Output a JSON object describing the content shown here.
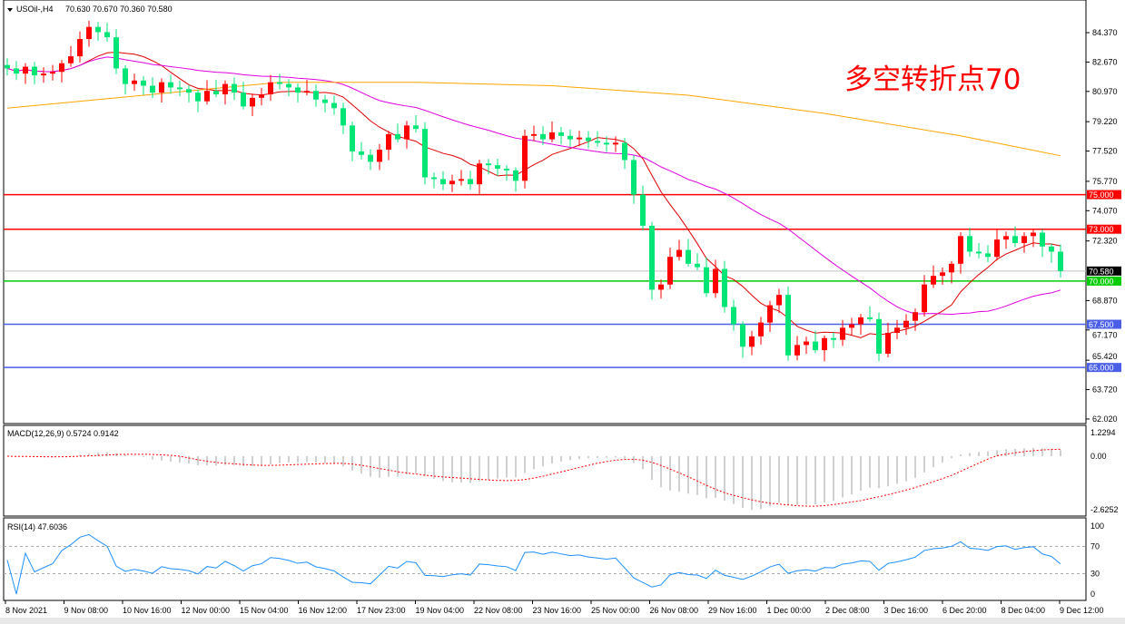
{
  "header": {
    "symbol": "USOil-,H4",
    "ohlc": "70.630 70.670 70.360 70.580"
  },
  "annotation": "多空转折点70",
  "colors": {
    "bull": "#ff0000",
    "bear": "#00e676",
    "ma_fast": "#e00000",
    "ma_mid": "#e000e0",
    "ma_slow": "#ffa500",
    "macd_hist": "#c0c0c0",
    "macd_signal": "#ff0000",
    "rsi": "#1e90ff"
  },
  "chart_data": [
    {
      "type": "candlestick",
      "title": "USOil-,H4",
      "ylim": [
        62.02,
        85.3
      ],
      "price_ticks": [
        "84.370",
        "82.670",
        "80.970",
        "79.220",
        "77.520",
        "75.770",
        "74.070",
        "72.320",
        "68.870",
        "67.170",
        "65.420",
        "63.720",
        "62.020"
      ],
      "closes": [
        82.3,
        82.0,
        82.4,
        81.9,
        82.0,
        82.1,
        82.6,
        83.0,
        84.0,
        84.7,
        84.4,
        84.1,
        82.3,
        81.4,
        81.6,
        81.3,
        80.9,
        81.5,
        81.2,
        81.1,
        80.9,
        80.4,
        81.0,
        80.8,
        81.4,
        80.9,
        80.1,
        80.6,
        80.8,
        81.5,
        81.4,
        81.2,
        80.9,
        81.0,
        80.5,
        80.3,
        80.0,
        79.0,
        77.5,
        77.3,
        76.9,
        77.6,
        78.5,
        78.2,
        79.0,
        78.8,
        76.0,
        75.9,
        75.6,
        75.8,
        75.9,
        75.6,
        76.8,
        76.7,
        76.5,
        76.4,
        75.8,
        78.4,
        78.5,
        78.2,
        78.6,
        78.4,
        78.2,
        78.3,
        78.1,
        78.0,
        77.9,
        78.0,
        77.0,
        75.0,
        73.2,
        69.5,
        69.8,
        71.4,
        71.8,
        71.0,
        70.8,
        69.3,
        70.7,
        68.5,
        67.5,
        66.2,
        66.8,
        67.6,
        68.6,
        69.2,
        65.7,
        66.3,
        66.5,
        66.0,
        66.7,
        66.6,
        67.3,
        67.5,
        67.9,
        67.8,
        65.8,
        67.0,
        67.3,
        67.7,
        68.2,
        69.8,
        70.3,
        70.5,
        71.0,
        72.6,
        71.7,
        71.6,
        71.4,
        72.4,
        72.6,
        72.2,
        72.6,
        72.8,
        72.0,
        71.7,
        70.58
      ],
      "slow_ma": [
        [
          0,
          80.0
        ],
        [
          30,
          81.5
        ],
        [
          45,
          81.5
        ],
        [
          60,
          81.3
        ],
        [
          75,
          80.75
        ],
        [
          90,
          79.7
        ],
        [
          105,
          78.4
        ],
        [
          116,
          77.25
        ]
      ],
      "levels": [
        {
          "price": 75.0,
          "label": "75.000",
          "color": "#ff0000"
        },
        {
          "price": 73.0,
          "label": "73.000",
          "color": "#ff0000"
        },
        {
          "price": 70.58,
          "label": "70.580",
          "color": "#c0c0c0",
          "tag": "#000000"
        },
        {
          "price": 70.0,
          "label": "70.000",
          "color": "#00cc00"
        },
        {
          "price": 67.5,
          "label": "67.500",
          "color": "#4a5ee8"
        },
        {
          "price": 65.0,
          "label": "65.000",
          "color": "#4a5ee8"
        }
      ],
      "x_ticks": [
        "8 Nov 2021",
        "9 Nov 08:00",
        "10 Nov 16:00",
        "12 Nov 00:00",
        "15 Nov 04:00",
        "16 Nov 12:00",
        "17 Nov 23:00",
        "19 Nov 04:00",
        "22 Nov 08:00",
        "23 Nov 16:00",
        "25 Nov 00:00",
        "26 Nov 08:00",
        "29 Nov 16:00",
        "1 Dec 00:00",
        "2 Dec 08:00",
        "3 Dec 16:00",
        "6 Dec 20:00",
        "8 Dec 04:00",
        "9 Dec 12:00"
      ]
    },
    {
      "type": "bar+line",
      "title": "MACD(12,26,9) 0.5724 0.9142",
      "ylim": [
        -2.6252,
        1.2294
      ],
      "ticks": [
        "1.2294",
        "0.00",
        "-2.6252"
      ]
    },
    {
      "type": "line",
      "title": "RSI(14) 47.6036",
      "ylim": [
        0,
        100
      ],
      "ticks": [
        "100",
        "70",
        "30",
        "0"
      ],
      "levels": [
        70,
        30
      ]
    }
  ]
}
